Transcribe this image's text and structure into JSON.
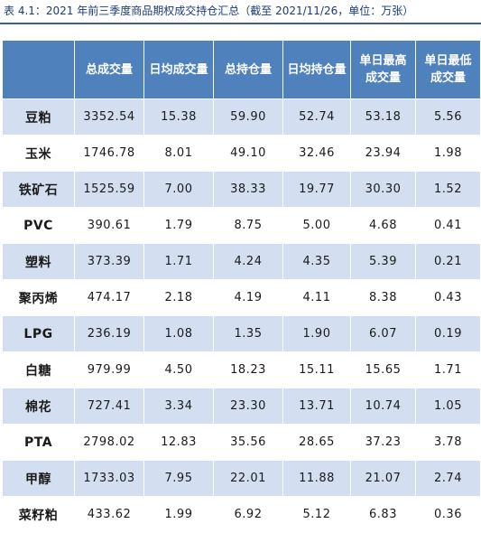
{
  "caption": "表 4.1：2021 年前三季度商品期权成交持仓汇总（截至 2021/11/26，单位：万张）",
  "columns": [
    "",
    "总成交量",
    "日均成交量",
    "总持仓量",
    "日均持仓量",
    "单日最高成交量",
    "单日最低成交量"
  ],
  "rows": [
    {
      "name": "豆粕",
      "values": [
        "3352.54",
        "15.38",
        "59.90",
        "52.74",
        "53.18",
        "5.56"
      ]
    },
    {
      "name": "玉米",
      "values": [
        "1746.78",
        "8.01",
        "49.10",
        "32.46",
        "23.94",
        "1.98"
      ]
    },
    {
      "name": "铁矿石",
      "values": [
        "1525.59",
        "7.00",
        "38.33",
        "19.77",
        "30.30",
        "1.52"
      ]
    },
    {
      "name": "PVC",
      "values": [
        "390.61",
        "1.79",
        "8.75",
        "5.00",
        "4.68",
        "0.41"
      ]
    },
    {
      "name": "塑料",
      "values": [
        "373.39",
        "1.71",
        "4.24",
        "4.35",
        "5.39",
        "0.21"
      ]
    },
    {
      "name": "聚丙烯",
      "values": [
        "474.17",
        "2.18",
        "4.19",
        "4.11",
        "8.38",
        "0.43"
      ]
    },
    {
      "name": "LPG",
      "values": [
        "236.19",
        "1.08",
        "1.35",
        "1.90",
        "6.07",
        "0.19"
      ]
    },
    {
      "name": "白糖",
      "values": [
        "979.99",
        "4.50",
        "18.23",
        "15.11",
        "15.65",
        "1.71"
      ]
    },
    {
      "name": "棉花",
      "values": [
        "727.41",
        "3.34",
        "23.30",
        "13.71",
        "10.74",
        "1.05"
      ]
    },
    {
      "name": "PTA",
      "values": [
        "2798.02",
        "12.83",
        "35.56",
        "28.65",
        "37.23",
        "3.78"
      ]
    },
    {
      "name": "甲醇",
      "values": [
        "1733.03",
        "7.95",
        "22.01",
        "11.88",
        "21.07",
        "2.74"
      ]
    },
    {
      "name": "菜籽粕",
      "values": [
        "433.62",
        "1.99",
        "6.92",
        "5.12",
        "6.83",
        "0.36"
      ]
    }
  ],
  "colors": {
    "header_bg": "#4f81bd",
    "band_bg": "#d3dff0",
    "caption_text": "#1a3a78"
  }
}
